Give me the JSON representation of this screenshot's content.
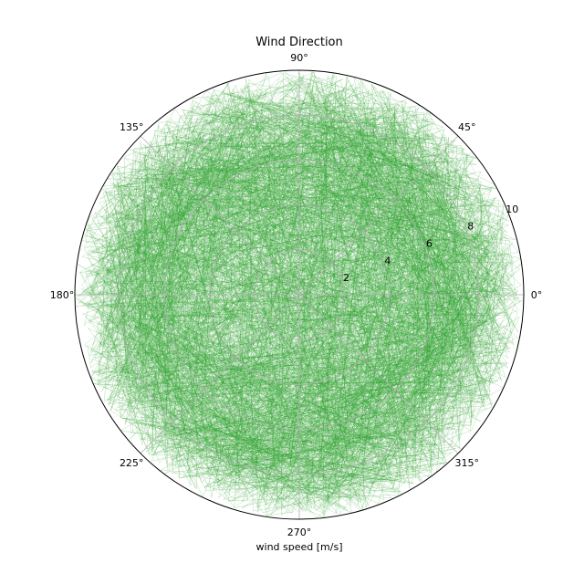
{
  "chart_data": {
    "type": "line",
    "projection": "polar",
    "title": "Wind Direction",
    "xlabel": "wind speed [m/s]",
    "ylabel": "",
    "rlim": [
      0,
      10
    ],
    "r_ticks": [
      "2",
      "4",
      "6",
      "8",
      "10"
    ],
    "theta_ticks": [
      "0°",
      "45°",
      "90°",
      "135°",
      "180°",
      "225°",
      "270°",
      "315°"
    ],
    "grid": true,
    "series": [
      {
        "color": "#2ca02c",
        "alpha": 0.35,
        "n_points": 3000,
        "r_typical": [
          6,
          9.5
        ],
        "r_max": 10,
        "description_free": true
      }
    ]
  }
}
